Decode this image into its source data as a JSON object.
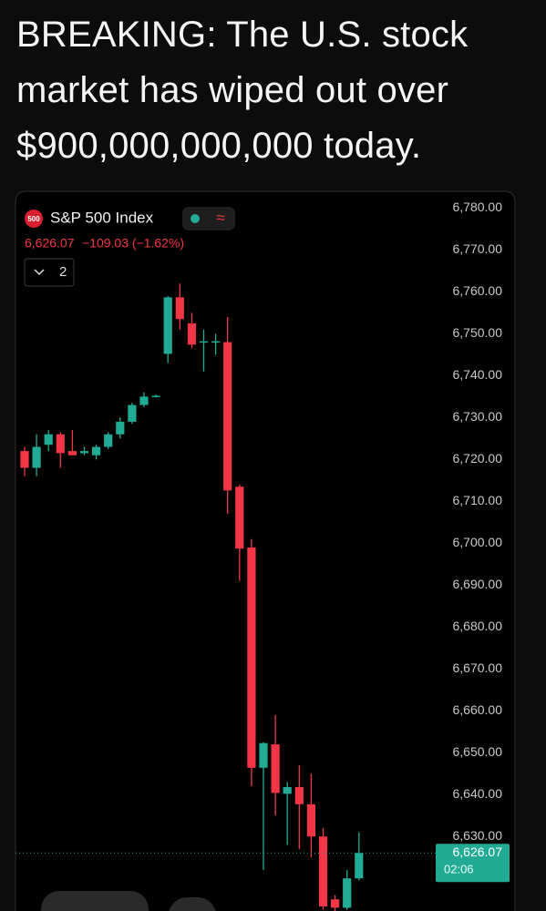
{
  "post": {
    "text": "BREAKING: The U.S. stock market has wiped out over $900,000,000,000 today."
  },
  "chart_data": {
    "type": "candlestick",
    "badge": "500",
    "title": "S&P 500 Index",
    "indicator": "≈",
    "quote": "6,626.07",
    "change": "−109.03 (−1.62%)",
    "toggle": "2",
    "countdown": "02:06",
    "up_color": "#22ab94",
    "down_color": "#f23645",
    "ylim": [
      6612,
      6784
    ],
    "yticks": [
      {
        "value": 6780,
        "label": "6,780.00"
      },
      {
        "value": 6770,
        "label": "6,770.00"
      },
      {
        "value": 6760,
        "label": "6,760.00"
      },
      {
        "value": 6750,
        "label": "6,750.00"
      },
      {
        "value": 6740,
        "label": "6,740.00"
      },
      {
        "value": 6730,
        "label": "6,730.00"
      },
      {
        "value": 6720,
        "label": "6,720.00"
      },
      {
        "value": 6710,
        "label": "6,710.00"
      },
      {
        "value": 6700,
        "label": "6,700.00"
      },
      {
        "value": 6690,
        "label": "6,690.00"
      },
      {
        "value": 6680,
        "label": "6,680.00"
      },
      {
        "value": 6670,
        "label": "6,670.00"
      },
      {
        "value": 6660,
        "label": "6,660.00"
      },
      {
        "value": 6650,
        "label": "6,650.00"
      },
      {
        "value": 6640,
        "label": "6,640.00"
      },
      {
        "value": 6630,
        "label": "6,630.00"
      }
    ],
    "last_price": {
      "value": 6626.07,
      "label": "6,626.07"
    },
    "open": [
      6722,
      6718,
      6723.5,
      6726,
      6722,
      6721.5,
      6721,
      6723,
      6726,
      6729,
      6733,
      6735,
      6745.2,
      6758.7,
      6752.5,
      6748,
      6748,
      6748,
      6713.5,
      6699,
      6646.4,
      6652,
      6640.2,
      6641.8,
      6637.7,
      6630,
      6615,
      6613,
      6620
    ],
    "high": [
      6723,
      6726,
      6727,
      6726.5,
      6727,
      6723,
      6723.5,
      6726.5,
      6730,
      6733.5,
      6736,
      6735.5,
      6759,
      6762,
      6755,
      6751,
      6750,
      6754,
      6714,
      6701,
      6652.5,
      6659,
      6643,
      6647,
      6645,
      6632,
      6616,
      6622,
      6631
    ],
    "low": [
      6716,
      6716,
      6722,
      6718,
      6721,
      6721,
      6720,
      6722.5,
      6725,
      6728.5,
      6732.5,
      6734.8,
      6743,
      6751,
      6746.5,
      6741,
      6745,
      6707,
      6691,
      6642,
      6622,
      6635,
      6628,
      6627,
      6625,
      6612.5,
      6612,
      6612.5,
      6619.5
    ],
    "close": [
      6718,
      6723,
      6726,
      6721.5,
      6721,
      6722,
      6723,
      6726,
      6729,
      6733,
      6735,
      6735.2,
      6758.7,
      6753.5,
      6747.4,
      6748.2,
      6748.2,
      6712.6,
      6698.7,
      6646.4,
      6652.3,
      6640.4,
      6641.8,
      6637.7,
      6630,
      6613.3,
      6613,
      6620,
      6626.07
    ]
  }
}
